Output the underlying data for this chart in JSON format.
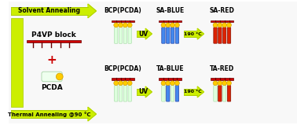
{
  "bg_color": "#f8f8f8",
  "border_color": "#aaaaaa",
  "yg": "#ccee00",
  "dyg": "#aacc00",
  "red_bar_color": "#cc0000",
  "gold_fill": "#ffcc00",
  "gold_edge": "#cc9900",
  "chain_light_fill": "#ddffdd",
  "chain_light_edge": "#88cc88",
  "chain_blue_fill": "#4488ee",
  "chain_blue_edge": "#2244aa",
  "chain_red_fill": "#dd2200",
  "chain_red_edge": "#881100",
  "title_top": [
    "BCP(PCDA)",
    "SA-BLUE",
    "SA-RED"
  ],
  "title_bot": [
    "BCP(PCDA)",
    "TA-BLUE",
    "TA-RED"
  ],
  "top_arrow_label": "Solvent Annealing",
  "bot_arrow_label": "Thermal Annealing @90 °C",
  "p4vp_label": "P4VP block",
  "pcda_label": "PCDA",
  "plus_label": "+",
  "uv_label": "UV",
  "temp_label": "190 °C",
  "figsize": [
    3.78,
    1.59
  ],
  "dpi": 100
}
